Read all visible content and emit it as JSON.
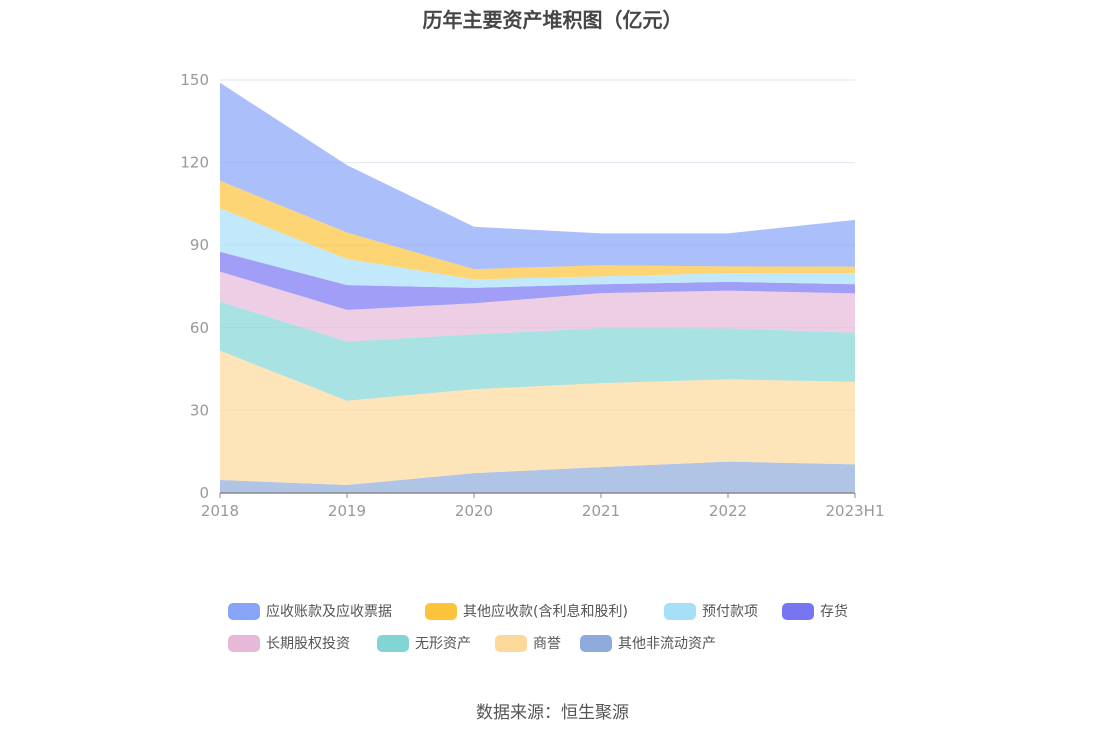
{
  "chart_data": {
    "type": "area",
    "stacked": true,
    "title": "历年主要资产堆积图（亿元）",
    "categories": [
      "2018",
      "2019",
      "2020",
      "2021",
      "2022",
      "2023H1"
    ],
    "ylim": [
      0,
      150
    ],
    "yticks": [
      0,
      30,
      60,
      90,
      120,
      150
    ],
    "grid": true,
    "legend_position": "bottom",
    "series": [
      {
        "name": "应收账款及应收票据",
        "color": "#88a4f9",
        "values": [
          35.6,
          24.5,
          15.4,
          11.6,
          12.0,
          17.0
        ]
      },
      {
        "name": "其他应收款(含利息和股利)",
        "color": "#fdc33a",
        "values": [
          10.0,
          9.6,
          3.7,
          4.0,
          2.5,
          2.4
        ]
      },
      {
        "name": "预付款项",
        "color": "#a7dff9",
        "values": [
          15.8,
          9.5,
          3.1,
          2.9,
          3.1,
          4.0
        ]
      },
      {
        "name": "存货",
        "color": "#7775f2",
        "values": [
          7.2,
          9.0,
          5.6,
          3.2,
          3.2,
          3.3
        ]
      },
      {
        "name": "长期股权投资",
        "color": "#e6b9d8",
        "values": [
          10.9,
          11.5,
          11.3,
          12.7,
          13.7,
          14.3
        ]
      },
      {
        "name": "无形资产",
        "color": "#83d5d5",
        "values": [
          17.8,
          21.5,
          19.9,
          20.0,
          18.5,
          17.8
        ]
      },
      {
        "name": "商誉",
        "color": "#fdd89b",
        "values": [
          47.0,
          30.6,
          30.5,
          30.5,
          29.9,
          30.0
        ]
      },
      {
        "name": "其他非流动资产",
        "color": "#8eabdb",
        "values": [
          4.7,
          2.9,
          7.2,
          9.4,
          11.4,
          10.4
        ]
      }
    ]
  },
  "source": "数据来源：恒生聚源"
}
